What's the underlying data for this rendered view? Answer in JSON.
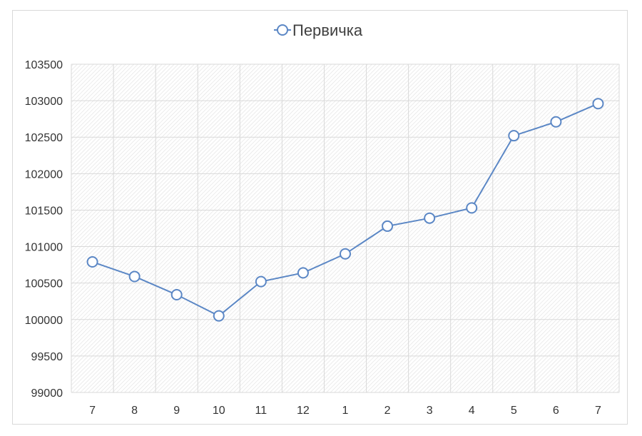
{
  "chart_data": {
    "type": "line",
    "title": "",
    "xlabel": "",
    "ylabel": "",
    "categories": [
      "7",
      "8",
      "9",
      "10",
      "11",
      "12",
      "1",
      "2",
      "3",
      "4",
      "5",
      "6",
      "7"
    ],
    "series": [
      {
        "name": "Первичка",
        "values": [
          100790,
          100590,
          100340,
          100050,
          100520,
          100640,
          100900,
          101280,
          101390,
          101530,
          102520,
          102710,
          102960
        ]
      }
    ],
    "ylim": [
      99000,
      103500
    ],
    "yticks": [
      "99000",
      "99500",
      "100000",
      "100500",
      "101000",
      "101500",
      "102000",
      "102500",
      "103000",
      "103500"
    ],
    "grid": true,
    "legend_position": "top"
  },
  "colors": {
    "series_line": "#5b87c5",
    "marker_fill": "#ffffff",
    "gridline": "#d9d9d9",
    "plot_hatch": "#e3e3e3"
  }
}
